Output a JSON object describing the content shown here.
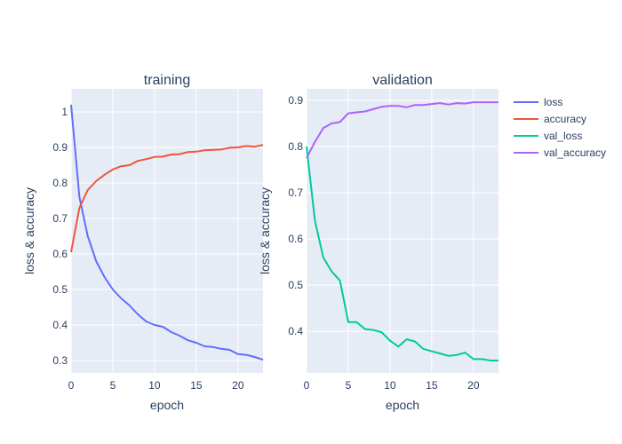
{
  "chart_data": [
    {
      "type": "line",
      "title": "training",
      "xlabel": "epoch",
      "ylabel": "loss & accuracy",
      "xlim": [
        0,
        23
      ],
      "ylim": [
        0.265,
        1.065
      ],
      "xticks": [
        0,
        5,
        10,
        15,
        20
      ],
      "yticks": [
        0.3,
        0.4,
        0.5,
        0.6,
        0.7,
        0.8,
        0.9,
        1
      ],
      "x": [
        0,
        1,
        2,
        3,
        4,
        5,
        6,
        7,
        8,
        9,
        10,
        11,
        12,
        13,
        14,
        15,
        16,
        17,
        18,
        19,
        20,
        21,
        22,
        23
      ],
      "series": [
        {
          "name": "loss",
          "color": "#636efa",
          "values": [
            1.02,
            0.76,
            0.65,
            0.58,
            0.535,
            0.5,
            0.475,
            0.455,
            0.43,
            0.41,
            0.4,
            0.395,
            0.38,
            0.37,
            0.357,
            0.35,
            0.34,
            0.338,
            0.333,
            0.33,
            0.318,
            0.316,
            0.31,
            0.302
          ]
        },
        {
          "name": "accuracy",
          "color": "#ef553b",
          "values": [
            0.605,
            0.73,
            0.78,
            0.805,
            0.823,
            0.838,
            0.847,
            0.85,
            0.862,
            0.867,
            0.873,
            0.874,
            0.88,
            0.881,
            0.887,
            0.888,
            0.892,
            0.893,
            0.894,
            0.899,
            0.9,
            0.904,
            0.902,
            0.907
          ]
        }
      ]
    },
    {
      "type": "line",
      "title": "validation",
      "xlabel": "epoch",
      "ylabel": "loss & accuracy",
      "xlim": [
        0,
        23
      ],
      "ylim": [
        0.31,
        0.925
      ],
      "xticks": [
        0,
        5,
        10,
        15,
        20
      ],
      "yticks": [
        0.4,
        0.5,
        0.6,
        0.7,
        0.8,
        0.9
      ],
      "x": [
        0,
        1,
        2,
        3,
        4,
        5,
        6,
        7,
        8,
        9,
        10,
        11,
        12,
        13,
        14,
        15,
        16,
        17,
        18,
        19,
        20,
        21,
        22,
        23
      ],
      "series": [
        {
          "name": "val_loss",
          "color": "#00cc96",
          "values": [
            0.8,
            0.64,
            0.56,
            0.53,
            0.51,
            0.42,
            0.42,
            0.405,
            0.403,
            0.398,
            0.38,
            0.367,
            0.383,
            0.378,
            0.362,
            0.357,
            0.352,
            0.347,
            0.349,
            0.354,
            0.34,
            0.34,
            0.337,
            0.337
          ]
        },
        {
          "name": "val_accuracy",
          "color": "#ab63fa",
          "values": [
            0.775,
            0.81,
            0.84,
            0.85,
            0.853,
            0.872,
            0.874,
            0.876,
            0.881,
            0.886,
            0.888,
            0.888,
            0.885,
            0.89,
            0.89,
            0.892,
            0.894,
            0.891,
            0.894,
            0.893,
            0.896,
            0.896,
            0.896,
            0.896
          ]
        }
      ]
    }
  ],
  "legend": {
    "placement": "top-right",
    "items": [
      {
        "name": "loss",
        "color": "#636efa"
      },
      {
        "name": "accuracy",
        "color": "#ef553b"
      },
      {
        "name": "val_loss",
        "color": "#00cc96"
      },
      {
        "name": "val_accuracy",
        "color": "#ab63fa"
      }
    ]
  },
  "style": {
    "plot_bg": "#e5ecf6",
    "grid": "#ffffff",
    "text": "#2a3f5f"
  }
}
